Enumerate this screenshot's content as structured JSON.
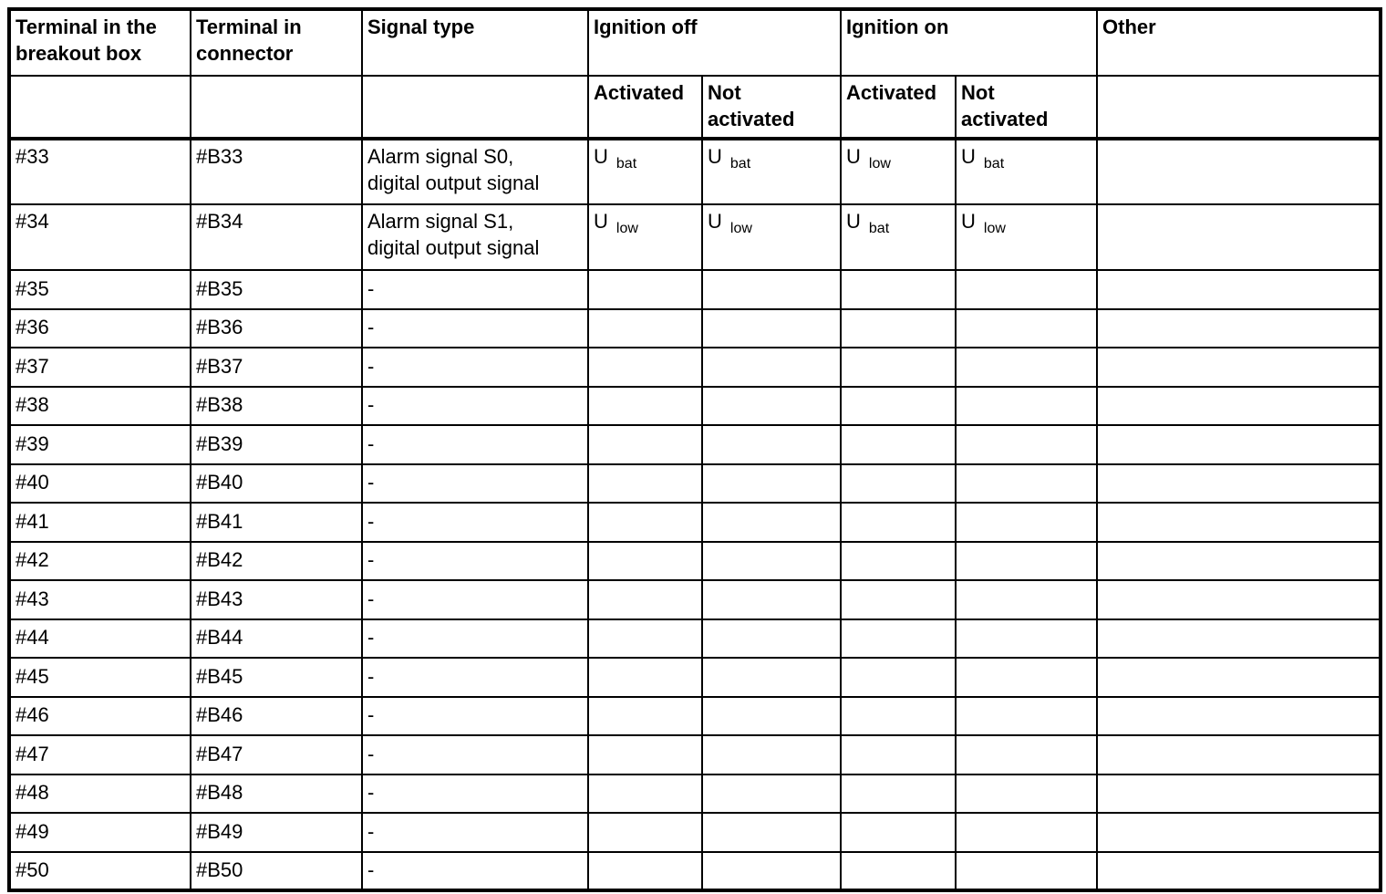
{
  "header": {
    "columns": {
      "breakout": "Terminal in the\nbreakout box",
      "connector": "Terminal in\nconnector",
      "signal": "Signal type",
      "ignition_off": "Ignition off",
      "ignition_on": "Ignition on",
      "other": "Other"
    },
    "subheaders": {
      "activated": "Activated",
      "not_activated": "Not\nactivated"
    }
  },
  "rows": [
    {
      "breakout": "#33",
      "connector": "#B33",
      "signal": "Alarm signal S0,\ndigital output signal",
      "ign_off_act": {
        "base": "U",
        "sub": "bat"
      },
      "ign_off_not": {
        "base": "U",
        "sub": "bat"
      },
      "ign_on_act": {
        "base": "U",
        "sub": "low"
      },
      "ign_on_not": {
        "base": "U",
        "sub": "bat"
      },
      "other": ""
    },
    {
      "breakout": "#34",
      "connector": "#B34",
      "signal": "Alarm signal S1,\ndigital output signal",
      "ign_off_act": {
        "base": "U",
        "sub": "low"
      },
      "ign_off_not": {
        "base": "U",
        "sub": "low"
      },
      "ign_on_act": {
        "base": "U",
        "sub": "bat"
      },
      "ign_on_not": {
        "base": "U",
        "sub": "low"
      },
      "other": ""
    },
    {
      "breakout": "#35",
      "connector": "#B35",
      "signal": "-",
      "ign_off_act": "",
      "ign_off_not": "",
      "ign_on_act": "",
      "ign_on_not": "",
      "other": ""
    },
    {
      "breakout": "#36",
      "connector": "#B36",
      "signal": "-",
      "ign_off_act": "",
      "ign_off_not": "",
      "ign_on_act": "",
      "ign_on_not": "",
      "other": ""
    },
    {
      "breakout": "#37",
      "connector": "#B37",
      "signal": "-",
      "ign_off_act": "",
      "ign_off_not": "",
      "ign_on_act": "",
      "ign_on_not": "",
      "other": ""
    },
    {
      "breakout": "#38",
      "connector": "#B38",
      "signal": "-",
      "ign_off_act": "",
      "ign_off_not": "",
      "ign_on_act": "",
      "ign_on_not": "",
      "other": ""
    },
    {
      "breakout": "#39",
      "connector": "#B39",
      "signal": "-",
      "ign_off_act": "",
      "ign_off_not": "",
      "ign_on_act": "",
      "ign_on_not": "",
      "other": ""
    },
    {
      "breakout": "#40",
      "connector": "#B40",
      "signal": "-",
      "ign_off_act": "",
      "ign_off_not": "",
      "ign_on_act": "",
      "ign_on_not": "",
      "other": ""
    },
    {
      "breakout": "#41",
      "connector": "#B41",
      "signal": "-",
      "ign_off_act": "",
      "ign_off_not": "",
      "ign_on_act": "",
      "ign_on_not": "",
      "other": ""
    },
    {
      "breakout": "#42",
      "connector": "#B42",
      "signal": "-",
      "ign_off_act": "",
      "ign_off_not": "",
      "ign_on_act": "",
      "ign_on_not": "",
      "other": ""
    },
    {
      "breakout": "#43",
      "connector": "#B43",
      "signal": "-",
      "ign_off_act": "",
      "ign_off_not": "",
      "ign_on_act": "",
      "ign_on_not": "",
      "other": ""
    },
    {
      "breakout": "#44",
      "connector": "#B44",
      "signal": "-",
      "ign_off_act": "",
      "ign_off_not": "",
      "ign_on_act": "",
      "ign_on_not": "",
      "other": ""
    },
    {
      "breakout": "#45",
      "connector": "#B45",
      "signal": "-",
      "ign_off_act": "",
      "ign_off_not": "",
      "ign_on_act": "",
      "ign_on_not": "",
      "other": ""
    },
    {
      "breakout": "#46",
      "connector": "#B46",
      "signal": "-",
      "ign_off_act": "",
      "ign_off_not": "",
      "ign_on_act": "",
      "ign_on_not": "",
      "other": ""
    },
    {
      "breakout": "#47",
      "connector": "#B47",
      "signal": "-",
      "ign_off_act": "",
      "ign_off_not": "",
      "ign_on_act": "",
      "ign_on_not": "",
      "other": ""
    },
    {
      "breakout": "#48",
      "connector": "#B48",
      "signal": "-",
      "ign_off_act": "",
      "ign_off_not": "",
      "ign_on_act": "",
      "ign_on_not": "",
      "other": ""
    },
    {
      "breakout": "#49",
      "connector": "#B49",
      "signal": "-",
      "ign_off_act": "",
      "ign_off_not": "",
      "ign_on_act": "",
      "ign_on_not": "",
      "other": ""
    },
    {
      "breakout": "#50",
      "connector": "#B50",
      "signal": "-",
      "ign_off_act": "",
      "ign_off_not": "",
      "ign_on_act": "",
      "ign_on_not": "",
      "other": ""
    }
  ]
}
